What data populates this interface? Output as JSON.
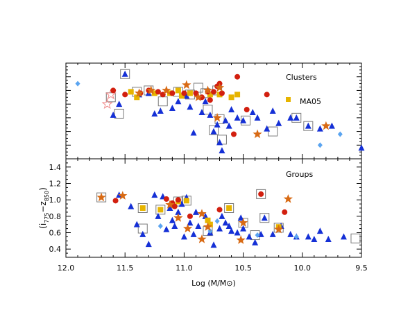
{
  "colors": {
    "red_dot": "#d21f0f",
    "orange_star": "#d86a14",
    "yellow_square": "#e6b400",
    "blue_triangle": "#1530d6",
    "light_blue_diamond": "#5aa4f0",
    "box_outline": "#7a7a7a",
    "open_star": "#f08a8a"
  },
  "chart_data": [
    {
      "type": "scatter",
      "panel": "top",
      "title": "",
      "label": "Clusters",
      "legend_entry": "MA05",
      "legend_entry_marker": "yellow_square",
      "legend_placement": "right",
      "xlim": [
        12.0,
        9.5
      ],
      "x_reversed": true,
      "xticks_labeled": false,
      "yticks_labeled": false,
      "grid": false,
      "series": [
        {
          "marker": "red_dot",
          "points": [
            {
              "x": 11.6,
              "y": 0.5
            },
            {
              "x": 11.5,
              "y": 0.47
            },
            {
              "x": 11.37,
              "y": 0.48
            },
            {
              "x": 11.3,
              "y": 0.5
            },
            {
              "x": 11.22,
              "y": 0.49
            },
            {
              "x": 11.18,
              "y": 0.47
            },
            {
              "x": 11.1,
              "y": 0.48
            },
            {
              "x": 11.0,
              "y": 0.48
            },
            {
              "x": 10.9,
              "y": 0.48
            },
            {
              "x": 10.85,
              "y": 0.45
            },
            {
              "x": 10.8,
              "y": 0.49
            },
            {
              "x": 10.75,
              "y": 0.49
            },
            {
              "x": 10.72,
              "y": 0.53
            },
            {
              "x": 10.7,
              "y": 0.55
            },
            {
              "x": 10.55,
              "y": 0.6
            },
            {
              "x": 10.47,
              "y": 0.36
            },
            {
              "x": 10.3,
              "y": 0.47
            },
            {
              "x": 10.58,
              "y": 0.18
            },
            {
              "x": 10.68,
              "y": 0.48
            },
            {
              "x": 10.78,
              "y": 0.43
            }
          ]
        },
        {
          "marker": "orange_star",
          "points": [
            {
              "x": 11.38,
              "y": 0.48
            },
            {
              "x": 11.28,
              "y": 0.5
            },
            {
              "x": 11.15,
              "y": 0.5
            },
            {
              "x": 10.98,
              "y": 0.54
            },
            {
              "x": 10.88,
              "y": 0.45
            },
            {
              "x": 10.8,
              "y": 0.5
            },
            {
              "x": 10.72,
              "y": 0.3
            },
            {
              "x": 10.7,
              "y": 0.52
            },
            {
              "x": 10.38,
              "y": 0.18
            },
            {
              "x": 9.8,
              "y": 0.24
            }
          ]
        },
        {
          "marker": "yellow_square",
          "points": [
            {
              "x": 11.45,
              "y": 0.49
            },
            {
              "x": 11.4,
              "y": 0.45
            },
            {
              "x": 11.25,
              "y": 0.48
            },
            {
              "x": 11.12,
              "y": 0.48
            },
            {
              "x": 11.05,
              "y": 0.5
            },
            {
              "x": 11.02,
              "y": 0.46
            },
            {
              "x": 10.95,
              "y": 0.48
            },
            {
              "x": 10.78,
              "y": 0.47
            },
            {
              "x": 10.7,
              "y": 0.47
            },
            {
              "x": 10.6,
              "y": 0.45
            },
            {
              "x": 10.55,
              "y": 0.47
            }
          ]
        },
        {
          "marker": "blue_triangle",
          "points": [
            {
              "x": 11.6,
              "y": 0.32
            },
            {
              "x": 11.55,
              "y": 0.4
            },
            {
              "x": 11.5,
              "y": 0.62
            },
            {
              "x": 11.38,
              "y": 0.47
            },
            {
              "x": 11.3,
              "y": 0.48
            },
            {
              "x": 11.25,
              "y": 0.33
            },
            {
              "x": 11.2,
              "y": 0.35
            },
            {
              "x": 11.1,
              "y": 0.37
            },
            {
              "x": 11.05,
              "y": 0.42
            },
            {
              "x": 10.98,
              "y": 0.46
            },
            {
              "x": 10.95,
              "y": 0.38
            },
            {
              "x": 10.92,
              "y": 0.19
            },
            {
              "x": 10.85,
              "y": 0.34
            },
            {
              "x": 10.82,
              "y": 0.42
            },
            {
              "x": 10.78,
              "y": 0.32
            },
            {
              "x": 10.75,
              "y": 0.2
            },
            {
              "x": 10.72,
              "y": 0.25
            },
            {
              "x": 10.7,
              "y": 0.12
            },
            {
              "x": 10.68,
              "y": 0.06
            },
            {
              "x": 10.65,
              "y": 0.28
            },
            {
              "x": 10.62,
              "y": 0.24
            },
            {
              "x": 10.6,
              "y": 0.36
            },
            {
              "x": 10.55,
              "y": 0.3
            },
            {
              "x": 10.5,
              "y": 0.28
            },
            {
              "x": 10.42,
              "y": 0.34
            },
            {
              "x": 10.38,
              "y": 0.3
            },
            {
              "x": 10.3,
              "y": 0.22
            },
            {
              "x": 10.25,
              "y": 0.35
            },
            {
              "x": 10.2,
              "y": 0.26
            },
            {
              "x": 10.1,
              "y": 0.3
            },
            {
              "x": 10.05,
              "y": 0.3
            },
            {
              "x": 9.95,
              "y": 0.24
            },
            {
              "x": 9.85,
              "y": 0.22
            },
            {
              "x": 9.75,
              "y": 0.24
            },
            {
              "x": 9.5,
              "y": 0.08
            }
          ]
        },
        {
          "marker": "light_blue_diamond",
          "points": [
            {
              "x": 11.9,
              "y": 0.55
            },
            {
              "x": 9.85,
              "y": 0.1
            },
            {
              "x": 9.68,
              "y": 0.18
            }
          ]
        },
        {
          "marker": "box_outline",
          "points": [
            {
              "x": 11.62,
              "y": 0.45
            },
            {
              "x": 11.55,
              "y": 0.33
            },
            {
              "x": 11.5,
              "y": 0.62
            },
            {
              "x": 11.4,
              "y": 0.49
            },
            {
              "x": 11.3,
              "y": 0.5
            },
            {
              "x": 11.18,
              "y": 0.42
            },
            {
              "x": 11.05,
              "y": 0.49
            },
            {
              "x": 10.95,
              "y": 0.47
            },
            {
              "x": 10.88,
              "y": 0.52
            },
            {
              "x": 10.82,
              "y": 0.48
            },
            {
              "x": 10.75,
              "y": 0.21
            },
            {
              "x": 10.72,
              "y": 0.5
            },
            {
              "x": 10.7,
              "y": 0.29
            },
            {
              "x": 10.68,
              "y": 0.14
            },
            {
              "x": 10.48,
              "y": 0.28
            },
            {
              "x": 10.25,
              "y": 0.2
            },
            {
              "x": 10.05,
              "y": 0.3
            },
            {
              "x": 9.95,
              "y": 0.24
            },
            {
              "x": 10.8,
              "y": 0.36
            }
          ]
        },
        {
          "marker": "open_star",
          "points": [
            {
              "x": 11.65,
              "y": 0.4
            },
            {
              "x": 11.62,
              "y": 0.47
            }
          ]
        }
      ]
    },
    {
      "type": "scatter",
      "panel": "bottom",
      "title": "",
      "label": "Groups",
      "xlabel": "Log (M/M⊙)",
      "ylabel": "(i775 − z850)",
      "ylabel_base": "(i",
      "ylabel_sub1": "775",
      "ylabel_mid": "−z",
      "ylabel_sub2": "850",
      "ylabel_end": ")",
      "xlim": [
        12.0,
        9.5
      ],
      "x_reversed": true,
      "ylim": [
        0.3,
        1.5
      ],
      "xticks": [
        12.0,
        11.5,
        11.0,
        10.5,
        10.0,
        9.5
      ],
      "xtick_labels": [
        "12.0",
        "11.5",
        "11.0",
        "10.5",
        "10.0",
        "9.5"
      ],
      "yticks": [
        0.4,
        0.6,
        0.8,
        1.0,
        1.2,
        1.4
      ],
      "ytick_labels": [
        "0.4",
        "0.6",
        "0.8",
        "1.0",
        "1.2",
        "1.4"
      ],
      "grid": false,
      "series": [
        {
          "marker": "red_dot",
          "points": [
            {
              "x": 11.58,
              "y": 0.99
            },
            {
              "x": 11.15,
              "y": 1.01
            },
            {
              "x": 11.1,
              "y": 0.96
            },
            {
              "x": 11.08,
              "y": 0.92
            },
            {
              "x": 11.05,
              "y": 1.0
            },
            {
              "x": 10.95,
              "y": 0.8
            },
            {
              "x": 10.7,
              "y": 0.88
            },
            {
              "x": 10.35,
              "y": 1.07
            },
            {
              "x": 10.15,
              "y": 0.85
            }
          ]
        },
        {
          "marker": "orange_star",
          "points": [
            {
              "x": 11.7,
              "y": 1.03
            },
            {
              "x": 11.52,
              "y": 1.05
            },
            {
              "x": 11.12,
              "y": 0.94
            },
            {
              "x": 11.05,
              "y": 0.78
            },
            {
              "x": 10.97,
              "y": 0.65
            },
            {
              "x": 10.85,
              "y": 0.83
            },
            {
              "x": 10.85,
              "y": 0.52
            },
            {
              "x": 10.8,
              "y": 0.67
            },
            {
              "x": 10.5,
              "y": 0.72
            },
            {
              "x": 10.52,
              "y": 0.51
            },
            {
              "x": 10.2,
              "y": 0.64
            },
            {
              "x": 10.12,
              "y": 1.01
            }
          ]
        },
        {
          "marker": "yellow_square",
          "points": [
            {
              "x": 11.35,
              "y": 0.9
            },
            {
              "x": 11.2,
              "y": 0.88
            },
            {
              "x": 11.05,
              "y": 0.98
            },
            {
              "x": 10.98,
              "y": 0.99
            },
            {
              "x": 10.8,
              "y": 0.75
            },
            {
              "x": 10.78,
              "y": 0.7
            },
            {
              "x": 10.62,
              "y": 0.9
            },
            {
              "x": 10.2,
              "y": 0.67
            }
          ]
        },
        {
          "marker": "blue_triangle",
          "points": [
            {
              "x": 11.55,
              "y": 1.06
            },
            {
              "x": 11.45,
              "y": 0.92
            },
            {
              "x": 11.4,
              "y": 0.7
            },
            {
              "x": 11.35,
              "y": 0.58
            },
            {
              "x": 11.3,
              "y": 0.46
            },
            {
              "x": 11.25,
              "y": 1.06
            },
            {
              "x": 11.22,
              "y": 0.8
            },
            {
              "x": 11.18,
              "y": 1.04
            },
            {
              "x": 11.15,
              "y": 0.64
            },
            {
              "x": 11.12,
              "y": 0.9
            },
            {
              "x": 11.1,
              "y": 0.75
            },
            {
              "x": 11.08,
              "y": 0.68
            },
            {
              "x": 11.05,
              "y": 0.85
            },
            {
              "x": 11.02,
              "y": 0.95
            },
            {
              "x": 11.0,
              "y": 0.55
            },
            {
              "x": 10.98,
              "y": 1.03
            },
            {
              "x": 10.95,
              "y": 0.72
            },
            {
              "x": 10.92,
              "y": 0.58
            },
            {
              "x": 10.9,
              "y": 0.85
            },
            {
              "x": 10.88,
              "y": 0.68
            },
            {
              "x": 10.82,
              "y": 0.8
            },
            {
              "x": 10.78,
              "y": 0.6
            },
            {
              "x": 10.75,
              "y": 0.45
            },
            {
              "x": 10.7,
              "y": 0.65
            },
            {
              "x": 10.65,
              "y": 0.72
            },
            {
              "x": 10.62,
              "y": 0.68
            },
            {
              "x": 10.6,
              "y": 0.62
            },
            {
              "x": 10.55,
              "y": 0.6
            },
            {
              "x": 10.52,
              "y": 0.78
            },
            {
              "x": 10.5,
              "y": 0.65
            },
            {
              "x": 10.45,
              "y": 0.55
            },
            {
              "x": 10.35,
              "y": 0.58
            },
            {
              "x": 10.32,
              "y": 0.78
            },
            {
              "x": 10.25,
              "y": 0.58
            },
            {
              "x": 10.18,
              "y": 0.68
            },
            {
              "x": 10.05,
              "y": 0.55
            },
            {
              "x": 9.95,
              "y": 0.55
            },
            {
              "x": 9.9,
              "y": 0.52
            },
            {
              "x": 9.85,
              "y": 0.62
            },
            {
              "x": 9.78,
              "y": 0.52
            },
            {
              "x": 9.65,
              "y": 0.55
            },
            {
              "x": 10.1,
              "y": 0.58
            },
            {
              "x": 10.4,
              "y": 0.48
            },
            {
              "x": 10.68,
              "y": 0.8
            }
          ]
        },
        {
          "marker": "light_blue_diamond",
          "points": [
            {
              "x": 11.1,
              "y": 0.95
            },
            {
              "x": 10.78,
              "y": 0.62
            },
            {
              "x": 10.72,
              "y": 0.74
            },
            {
              "x": 10.38,
              "y": 0.57
            },
            {
              "x": 10.05,
              "y": 0.55
            },
            {
              "x": 11.2,
              "y": 0.68
            }
          ]
        },
        {
          "marker": "box_outline",
          "points": [
            {
              "x": 11.7,
              "y": 1.03
            },
            {
              "x": 11.35,
              "y": 0.9
            },
            {
              "x": 11.35,
              "y": 0.65
            },
            {
              "x": 11.2,
              "y": 0.88
            },
            {
              "x": 11.05,
              "y": 0.98
            },
            {
              "x": 10.98,
              "y": 0.99
            },
            {
              "x": 10.8,
              "y": 0.62
            },
            {
              "x": 10.62,
              "y": 0.9
            },
            {
              "x": 10.5,
              "y": 0.72
            },
            {
              "x": 10.35,
              "y": 1.07
            },
            {
              "x": 10.32,
              "y": 0.78
            },
            {
              "x": 10.4,
              "y": 0.57
            },
            {
              "x": 10.2,
              "y": 0.66
            },
            {
              "x": 9.55,
              "y": 0.53
            }
          ]
        }
      ]
    }
  ]
}
